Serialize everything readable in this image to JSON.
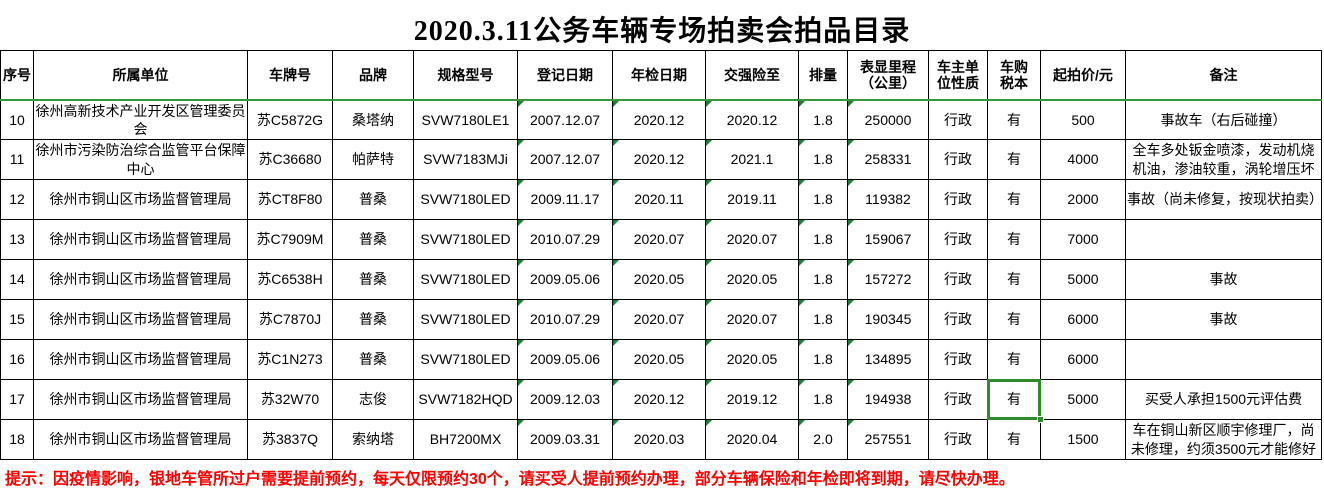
{
  "title": "2020.3.11公务车辆专场拍卖会拍品目录",
  "table": {
    "columns": [
      {
        "key": "seq",
        "label": "序号"
      },
      {
        "key": "unit",
        "label": "所属单位"
      },
      {
        "key": "plate",
        "label": "车牌号"
      },
      {
        "key": "brand",
        "label": "品牌"
      },
      {
        "key": "model",
        "label": "规格型号"
      },
      {
        "key": "reg_date",
        "label": "登记日期"
      },
      {
        "key": "inspection_date",
        "label": "年检日期"
      },
      {
        "key": "insurance_until",
        "label": "交强险至"
      },
      {
        "key": "displacement",
        "label": "排量"
      },
      {
        "key": "mileage",
        "label": "表显里程\n（公里）"
      },
      {
        "key": "owner_type",
        "label": "车主单\n位性质"
      },
      {
        "key": "tax_book",
        "label": "车购\n税本"
      },
      {
        "key": "start_price",
        "label": "起拍价/元"
      },
      {
        "key": "remarks",
        "label": "备注"
      }
    ],
    "error_marker_columns": [
      "reg_date",
      "inspection_date",
      "insurance_until",
      "displacement",
      "mileage"
    ],
    "rows": [
      [
        "10",
        "徐州高新技术产业开发区管理委员会",
        "苏C5872G",
        "桑塔纳",
        "SVW7180LE1",
        "2007.12.07",
        "2020.12",
        "2020.12",
        "1.8",
        "250000",
        "行政",
        "有",
        "500",
        "事故车（右后碰撞）"
      ],
      [
        "11",
        "徐州市污染防治综合监管平台保障中心",
        "苏C36680",
        "帕萨特",
        "SVW7183MJi",
        "2007.12.07",
        "2020.12",
        "2021.1",
        "1.8",
        "258331",
        "行政",
        "有",
        "4000",
        "全车多处钣金喷漆，发动机烧机油，渗油较重，涡轮增压坏"
      ],
      [
        "12",
        "徐州市铜山区市场监督管理局",
        "苏CT8F80",
        "普桑",
        "SVW7180LED",
        "2009.11.17",
        "2020.11",
        "2019.11",
        "1.8",
        "119382",
        "行政",
        "有",
        "2000",
        "事故（尚未修复，按现状拍卖）"
      ],
      [
        "13",
        "徐州市铜山区市场监督管理局",
        "苏C7909M",
        "普桑",
        "SVW7180LED",
        "2010.07.29",
        "2020.07",
        "2020.07",
        "1.8",
        "159067",
        "行政",
        "有",
        "7000",
        ""
      ],
      [
        "14",
        "徐州市铜山区市场监督管理局",
        "苏C6538H",
        "普桑",
        "SVW7180LED",
        "2009.05.06",
        "2020.05",
        "2020.05",
        "1.8",
        "157272",
        "行政",
        "有",
        "5000",
        "事故"
      ],
      [
        "15",
        "徐州市铜山区市场监督管理局",
        "苏C7870J",
        "普桑",
        "SVW7180LED",
        "2010.07.29",
        "2020.07",
        "2020.07",
        "1.8",
        "190345",
        "行政",
        "有",
        "6000",
        "事故"
      ],
      [
        "16",
        "徐州市铜山区市场监督管理局",
        "苏C1N273",
        "普桑",
        "SVW7180LED",
        "2009.05.06",
        "2020.05",
        "2020.05",
        "1.8",
        "134895",
        "行政",
        "有",
        "6000",
        ""
      ],
      [
        "17",
        "徐州市铜山区市场监督管理局",
        "苏32W70",
        "志俊",
        "SVW7182HQD",
        "2009.12.03",
        "2020.12",
        "2019.12",
        "1.8",
        "194938",
        "行政",
        "有",
        "5000",
        "买受人承担1500元评估费"
      ],
      [
        "18",
        "徐州市铜山区市场监督管理局",
        "苏3837Q",
        "索纳塔",
        "BH7200MX",
        "2009.03.31",
        "2020.03",
        "2020.04",
        "2.0",
        "257551",
        "行政",
        "有",
        "1500",
        "车在铜山新区顺宇修理厂，尚未修理，约须3500元才能修好"
      ]
    ]
  },
  "selection": {
    "row_index": 7,
    "column_key": "tax_book"
  },
  "footer_note": "提示：因疫情影响，银地车管所过户需要提前预约，每天仅限预约30个，请买受人提前预约办理，部分车辆保险和年检即将到期，请尽快办理。",
  "colors": {
    "grid": "#000000",
    "header_underline": "#3a9639",
    "selection": "#2e8b2e",
    "error_marker": "#1e7e34",
    "note_text": "#ff0000"
  }
}
